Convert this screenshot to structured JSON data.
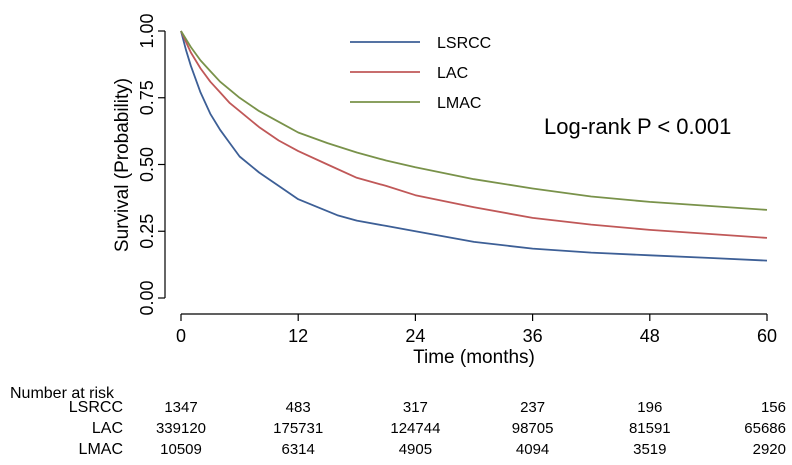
{
  "chart_data": {
    "type": "line",
    "xlabel": "Time (months)",
    "ylabel": "Survival (Probability)",
    "xlim": [
      0,
      60
    ],
    "ylim": [
      0,
      1
    ],
    "xticks": [
      0,
      12,
      24,
      36,
      48,
      60
    ],
    "yticks": [
      0,
      0.25,
      0.5,
      0.75,
      1
    ],
    "ytick_labels": [
      "0.00",
      "0.25",
      "0.50",
      "0.75",
      "1.00"
    ],
    "grid": false,
    "legend_position": "top-center",
    "annotation": "Log-rank P < 0.001",
    "series": [
      {
        "name": "LSRCC",
        "color": "#3d5f96",
        "x": [
          0,
          0.5,
          1,
          2,
          3,
          4,
          5,
          6,
          8,
          10,
          12,
          14,
          16,
          18,
          21,
          24,
          30,
          36,
          42,
          48,
          54,
          60
        ],
        "y": [
          1.0,
          0.93,
          0.87,
          0.77,
          0.69,
          0.63,
          0.58,
          0.53,
          0.47,
          0.42,
          0.37,
          0.34,
          0.31,
          0.29,
          0.27,
          0.25,
          0.21,
          0.185,
          0.17,
          0.16,
          0.15,
          0.14
        ]
      },
      {
        "name": "LAC",
        "color": "#c05858",
        "x": [
          0,
          0.5,
          1,
          2,
          3,
          4,
          5,
          6,
          8,
          10,
          12,
          15,
          18,
          21,
          24,
          30,
          36,
          42,
          48,
          54,
          60
        ],
        "y": [
          1.0,
          0.96,
          0.92,
          0.86,
          0.81,
          0.77,
          0.73,
          0.7,
          0.64,
          0.59,
          0.55,
          0.5,
          0.45,
          0.42,
          0.385,
          0.34,
          0.3,
          0.275,
          0.255,
          0.24,
          0.225
        ]
      },
      {
        "name": "LMAC",
        "color": "#79924a",
        "x": [
          0,
          0.5,
          1,
          2,
          3,
          4,
          5,
          6,
          8,
          10,
          12,
          15,
          18,
          21,
          24,
          30,
          36,
          42,
          48,
          54,
          60
        ],
        "y": [
          1.0,
          0.97,
          0.94,
          0.89,
          0.85,
          0.81,
          0.78,
          0.75,
          0.7,
          0.66,
          0.62,
          0.58,
          0.545,
          0.515,
          0.49,
          0.445,
          0.41,
          0.38,
          0.36,
          0.345,
          0.33
        ]
      }
    ],
    "risk_table": {
      "title": "Number at risk",
      "times": [
        0,
        12,
        24,
        36,
        48,
        60
      ],
      "rows": [
        {
          "label": "LSRCC",
          "values": [
            "1347",
            "483",
            "317",
            "237",
            "196",
            "156"
          ]
        },
        {
          "label": "LAC",
          "values": [
            "339120",
            "175731",
            "124744",
            "98705",
            "81591",
            "65686"
          ]
        },
        {
          "label": "LMAC",
          "values": [
            "10509",
            "6314",
            "4905",
            "4094",
            "3519",
            "2920"
          ]
        }
      ]
    }
  }
}
